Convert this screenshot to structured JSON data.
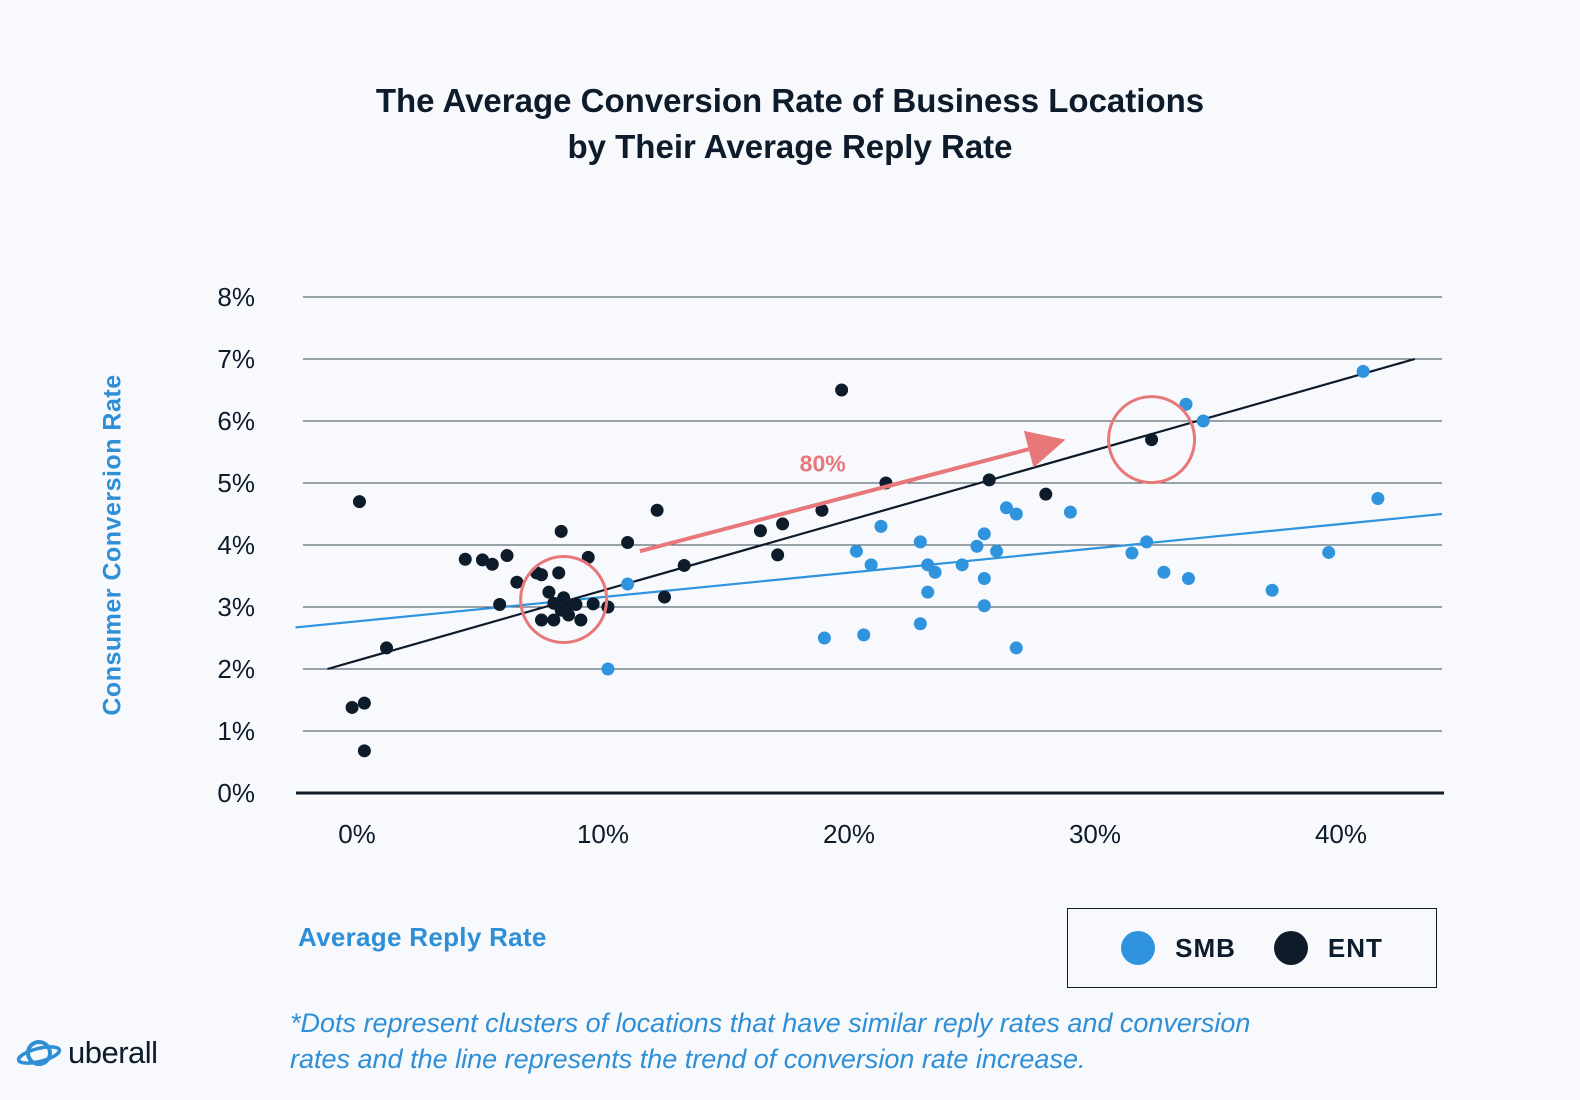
{
  "title": {
    "line1": "The Average Conversion Rate of Business Locations",
    "line2": "by Their Average Reply Rate"
  },
  "footnote": {
    "line1": "*Dots represent clusters of locations that have similar reply rates and conversion",
    "line2": "rates  and the line represents the trend of conversion rate increase."
  },
  "logo": {
    "text": "uberall",
    "icon": "planet-logo-icon"
  },
  "colors": {
    "smb": "#2f94dd",
    "ent": "#0d1b2a",
    "annotation": "#e8777a",
    "grid": "#0d1b2a"
  },
  "chart_data": {
    "type": "scatter",
    "xlabel": "Average Reply Rate",
    "ylabel": "Consumer Conversion Rate",
    "xlim": [
      -2.2,
      44
    ],
    "ylim": [
      0,
      8
    ],
    "x_ticks": [
      "0%",
      "10%",
      "20%",
      "30%",
      "40%"
    ],
    "x_tick_values": [
      0,
      10,
      20,
      30,
      40
    ],
    "y_ticks": [
      "0%",
      "1%",
      "2%",
      "3%",
      "4%",
      "5%",
      "6%",
      "7%",
      "8%"
    ],
    "y_tick_values": [
      0,
      1,
      2,
      3,
      4,
      5,
      6,
      7,
      8
    ],
    "grid": "horizontal",
    "legend": {
      "placement": "bottom-right",
      "entries": [
        "SMB",
        "ENT"
      ]
    },
    "series": [
      {
        "name": "SMB",
        "color": "#2f94dd",
        "points": [
          [
            10.2,
            2.0
          ],
          [
            11.0,
            3.37
          ],
          [
            19.0,
            2.5
          ],
          [
            20.3,
            3.9
          ],
          [
            20.6,
            2.55
          ],
          [
            20.9,
            3.68
          ],
          [
            21.3,
            4.3
          ],
          [
            22.9,
            4.05
          ],
          [
            22.9,
            2.73
          ],
          [
            23.2,
            3.68
          ],
          [
            23.2,
            3.24
          ],
          [
            23.5,
            3.56
          ],
          [
            24.6,
            3.68
          ],
          [
            25.2,
            3.98
          ],
          [
            25.5,
            4.18
          ],
          [
            25.5,
            3.46
          ],
          [
            25.5,
            3.02
          ],
          [
            26.0,
            3.9
          ],
          [
            26.4,
            4.6
          ],
          [
            26.8,
            4.5
          ],
          [
            26.8,
            2.34
          ],
          [
            29.0,
            4.53
          ],
          [
            31.5,
            3.87
          ],
          [
            32.1,
            4.05
          ],
          [
            32.8,
            3.56
          ],
          [
            33.7,
            6.27
          ],
          [
            33.8,
            3.46
          ],
          [
            34.4,
            6.0
          ],
          [
            37.2,
            3.27
          ],
          [
            39.5,
            3.88
          ],
          [
            40.9,
            6.8
          ],
          [
            41.5,
            4.75
          ]
        ],
        "trendline": [
          [
            -2.5,
            2.67
          ],
          [
            44.1,
            4.5
          ]
        ]
      },
      {
        "name": "ENT",
        "color": "#0d1b2a",
        "points": [
          [
            0.1,
            4.7
          ],
          [
            -0.2,
            1.38
          ],
          [
            0.3,
            1.45
          ],
          [
            0.3,
            0.68
          ],
          [
            1.2,
            2.34
          ],
          [
            4.4,
            3.77
          ],
          [
            5.1,
            3.76
          ],
          [
            5.5,
            3.69
          ],
          [
            5.8,
            3.04
          ],
          [
            6.1,
            3.83
          ],
          [
            6.5,
            3.4
          ],
          [
            7.3,
            3.55
          ],
          [
            7.5,
            3.52
          ],
          [
            7.5,
            2.79
          ],
          [
            7.8,
            3.24
          ],
          [
            8.0,
            3.06
          ],
          [
            8.0,
            2.79
          ],
          [
            8.2,
            3.55
          ],
          [
            8.3,
            4.22
          ],
          [
            8.3,
            2.95
          ],
          [
            8.4,
            3.15
          ],
          [
            8.6,
            3.04
          ],
          [
            8.6,
            2.87
          ],
          [
            8.9,
            3.04
          ],
          [
            9.1,
            2.79
          ],
          [
            9.4,
            3.8
          ],
          [
            9.6,
            3.05
          ],
          [
            10.2,
            3.0
          ],
          [
            11.0,
            4.04
          ],
          [
            12.2,
            4.56
          ],
          [
            12.5,
            3.16
          ],
          [
            13.3,
            3.67
          ],
          [
            16.4,
            4.23
          ],
          [
            17.1,
            3.84
          ],
          [
            17.3,
            4.34
          ],
          [
            18.9,
            4.56
          ],
          [
            19.7,
            6.5
          ],
          [
            21.5,
            5.0
          ],
          [
            25.7,
            5.05
          ],
          [
            28.0,
            4.82
          ],
          [
            32.3,
            5.7
          ]
        ],
        "trendline": [
          [
            -1.2,
            2.0
          ],
          [
            43.0,
            7.0
          ]
        ]
      }
    ],
    "annotations": [
      {
        "type": "arrow",
        "label": "80%",
        "from": [
          11.5,
          3.9
        ],
        "to": [
          28.8,
          5.7
        ]
      },
      {
        "type": "circle",
        "center": [
          8.4,
          3.12
        ]
      },
      {
        "type": "circle",
        "center": [
          32.3,
          5.7
        ]
      }
    ]
  }
}
